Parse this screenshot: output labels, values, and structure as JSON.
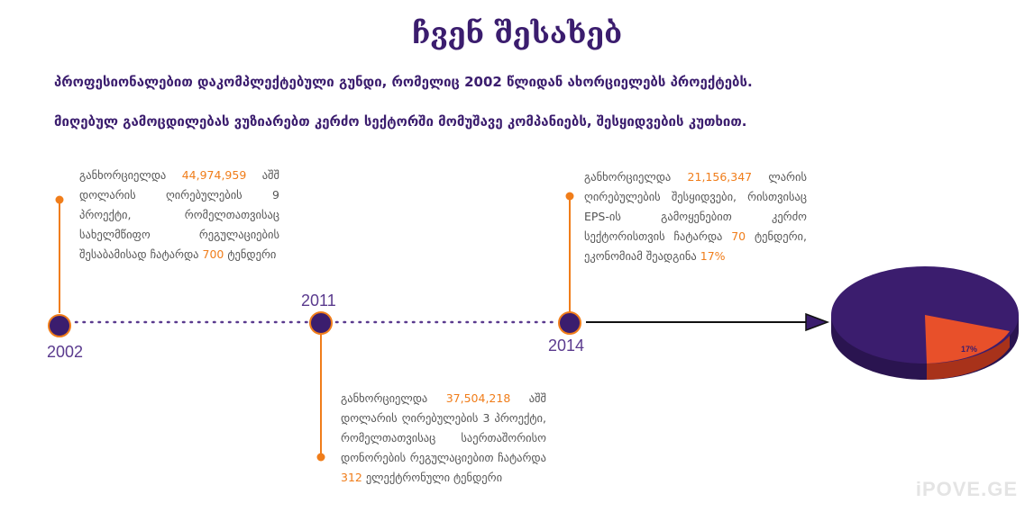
{
  "title": "ჩვენ შესახებ",
  "intro": {
    "line1": "პროფესიონალებით დაკომპლექტებული გუნდი, რომელიც 2002 წლიდან ახორციელებს პროექტებს.",
    "line2": "მიღებულ გამოცდილებას ვუზიარებთ კერძო სექტორში მომუშავე კომპანიებს, შესყიდვების კუთხით."
  },
  "timeline": {
    "y2002": {
      "year": "2002",
      "prefix": "განხორციელდა ",
      "amount": "44,974,959",
      "middle": " აშშ დოლარის ღირებულების 9 პროექტი, რომელთათვისაც სახელმწიფო რეგულაციების შესაბამისად ჩატარდა ",
      "count": "700",
      "suffix": " ტენდერი"
    },
    "y2011": {
      "year": "2011",
      "prefix": "განხორციელდა ",
      "amount": "37,504,218",
      "middle": " აშშ დოლარის ღირებულების 3 პროექტი, რომელთათვისაც საერთაშორისო დონორების რეგულაციებით ჩატარდა ",
      "count": "312",
      "suffix": " ელექტრონული ტენდერი"
    },
    "y2014": {
      "year": "2014",
      "prefix": "განხორციელდა ",
      "amount": "21,156,347",
      "middle": " ლარის ღირებულების შესყიდვები, რისთვისაც EPS-ის გამოყენებით კერძო სექტორისთვის ჩატარდა ",
      "count": "70",
      "suffix2": " ტენდერი, ეკონომიამ შეადგინა ",
      "percent": "17%"
    }
  },
  "pie": {
    "label": "17%",
    "share": 0.17,
    "main_color": "#3b1d6e",
    "slice_color": "#e8502a"
  },
  "watermark": "iPOVE.GE",
  "colors": {
    "purple": "#3b1d6e",
    "orange": "#f07d1a",
    "dot": "#5a3a8e"
  }
}
